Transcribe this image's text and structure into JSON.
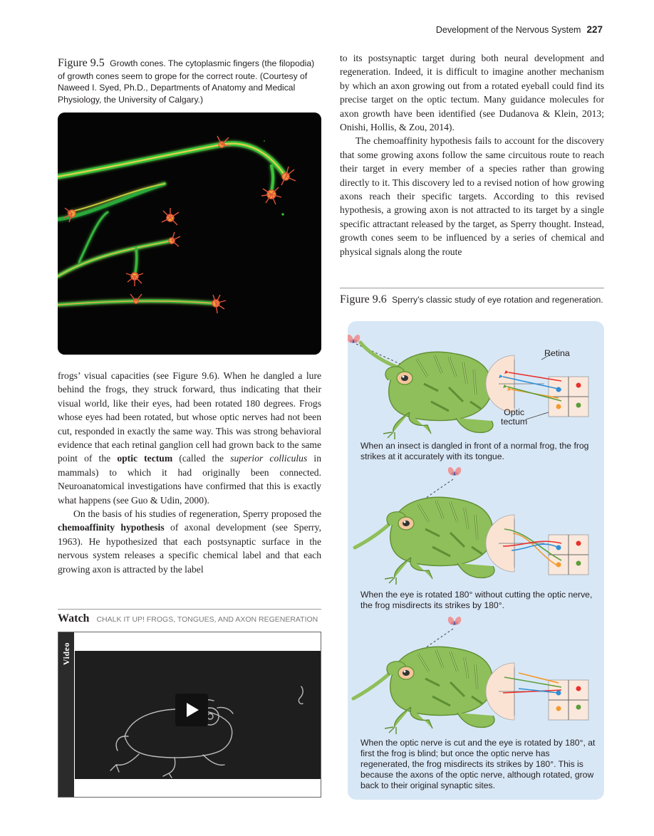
{
  "header": {
    "running_title": "Development of the Nervous System",
    "page_number": "227"
  },
  "figure_9_5": {
    "label": "Figure 9.5",
    "caption": "Growth cones. The cytoplasmic fingers (the filopodia) of growth cones seem to grope for the correct route. (Courtesy of Naweed I. Syed, Ph.D., Departments of Anatomy and Medical Physiology, the University of Calgary.)"
  },
  "left_text": {
    "p1_a": "frogs’ visual capacities (see Figure 9.6). When he dangled a lure behind the frogs, they struck forward, thus indicating that their visual world, like their eyes, had been rotated 180 degrees. Frogs whose eyes had been rotated, but whose optic nerves had not been cut, responded in exactly the same way. This was strong behavioral evidence that each retinal ganglion cell had grown back to the same point of the ",
    "p1_bold": "optic tectum",
    "p1_b": " (called the ",
    "p1_ital": "superior colliculus",
    "p1_c": " in mammals) to which it had originally been connected. Neuroanatomical investigations have confirmed that this is exactly what happens (see Guo & Udin, 2000).",
    "p2_a": "On the basis of his studies of regeneration, Sperry proposed the ",
    "p2_bold": "chemoaffinity hypothesis",
    "p2_b": " of axonal development (see Sperry, 1963). He hypothesized that each postsynaptic surface in the nervous system releases a specific chemical label and that each growing axon is attracted by the label"
  },
  "right_text": {
    "p1": "to its postsynaptic target during both neural development and regeneration. Indeed, it is difficult to imagine another mechanism by which an axon growing out from a rotated eyeball could find its precise target on the optic tectum. Many guidance molecules for axon growth have been identified (see Dudanova & Klein, 2013; Onishi, Hollis, & Zou, 2014).",
    "p2": "The chemoaffinity hypothesis fails to account for the discovery that some growing axons follow the same circuitous route to reach their target in every member of a species rather than growing directly to it. This discovery led to a revised notion of how growing axons reach their specific targets. According to this revised hypothesis, a growing axon is not attracted to its target by a single specific attractant released by the target, as Sperry thought. Instead, growth cones seem to be influenced by a series of chemical and physical signals along the route"
  },
  "watch": {
    "label": "Watch",
    "title": "CHALK IT UP! FROGS, TONGUES, AND AXON REGENERATION",
    "tab": "Video"
  },
  "figure_9_6": {
    "label": "Figure 9.6",
    "caption": "Sperry’s classic study of eye rotation and regeneration.",
    "retina_label": "Retina",
    "tectum_label_1": "Optic",
    "tectum_label_2": "tectum",
    "panel1": "When an insect is dangled in front of a normal frog, the frog strikes at it accurately with its tongue.",
    "panel2": "When the eye is rotated 180° without cutting the optic nerve, the frog misdirects its strikes by 180°.",
    "panel3": "When the optic nerve is cut and the eye is rotated by 180°, at first the frog is blind; but once the optic nerve has regenerated, the frog misdirects its strikes by 180°. This is because the axons of the optic nerve, although rotated, grow back to their original synaptic sites."
  },
  "colors": {
    "panel_bg": "#d8e7f6",
    "frog_green": "#8fbf5a",
    "red": "#e8312c",
    "blue": "#2f8fd6",
    "orange": "#f39a2e",
    "green": "#5a9e3a"
  }
}
